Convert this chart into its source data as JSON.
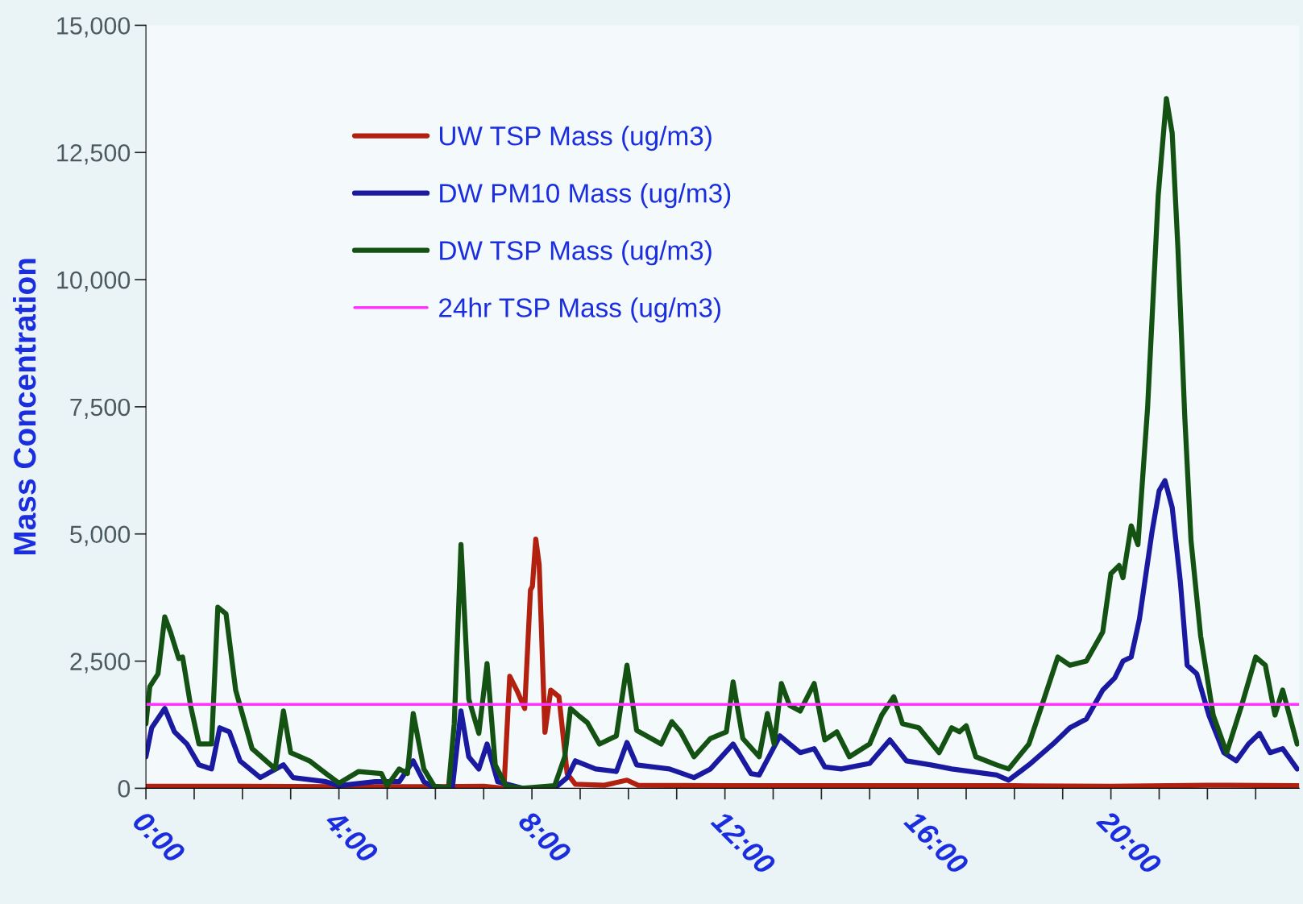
{
  "chart_data": {
    "type": "line",
    "ylabel": "Mass Concentration",
    "xlim": [
      0,
      23.9
    ],
    "ylim": [
      0,
      15000
    ],
    "xticks": [
      {
        "value": 0,
        "label": "0:00"
      },
      {
        "value": 1,
        "label": null
      },
      {
        "value": 2,
        "label": null
      },
      {
        "value": 3,
        "label": null
      },
      {
        "value": 4,
        "label": "4:00"
      },
      {
        "value": 5,
        "label": null
      },
      {
        "value": 6,
        "label": null
      },
      {
        "value": 7,
        "label": null
      },
      {
        "value": 8,
        "label": "8:00"
      },
      {
        "value": 9,
        "label": null
      },
      {
        "value": 10,
        "label": null
      },
      {
        "value": 11,
        "label": null
      },
      {
        "value": 12,
        "label": "12:00"
      },
      {
        "value": 13,
        "label": null
      },
      {
        "value": 14,
        "label": null
      },
      {
        "value": 15,
        "label": null
      },
      {
        "value": 16,
        "label": "16:00"
      },
      {
        "value": 17,
        "label": null
      },
      {
        "value": 18,
        "label": null
      },
      {
        "value": 19,
        "label": null
      },
      {
        "value": 20,
        "label": "20:00"
      },
      {
        "value": 21,
        "label": null
      },
      {
        "value": 22,
        "label": null
      },
      {
        "value": 23,
        "label": null
      }
    ],
    "yticks": [
      0,
      {
        "value": 2500,
        "label": "2,500"
      },
      {
        "value": 5000,
        "label": "5,000"
      },
      {
        "value": 7500,
        "label": "7,500"
      },
      {
        "value": 10000,
        "label": "10,000"
      },
      {
        "value": 12500,
        "label": "12,500"
      },
      {
        "value": 15000,
        "label": "15,000"
      }
    ],
    "grid": false,
    "legend": "top left",
    "marker": "none",
    "line_style": "solid",
    "series": [
      {
        "name": "UW TSP Mass (ug/m3)",
        "color": "#b22010",
        "x": [
          0,
          2,
          4,
          6,
          7,
          7.42,
          7.54,
          7.7,
          7.85,
          7.97,
          8.01,
          8.08,
          8.15,
          8.27,
          8.39,
          8.56,
          8.73,
          8.9,
          9.5,
          9.97,
          10.2,
          12,
          14,
          16,
          18,
          20,
          22,
          23.9
        ],
        "values": [
          40,
          40,
          30,
          30,
          40,
          0,
          2200,
          1900,
          1570,
          3900,
          3970,
          4900,
          4400,
          1100,
          1930,
          1800,
          290,
          80,
          60,
          160,
          60,
          50,
          50,
          50,
          50,
          40,
          60,
          50
        ]
      },
      {
        "name": "DW PM10 Mass (ug/m3)",
        "color": "#1a1aa0",
        "x": [
          0,
          0.12,
          0.39,
          0.59,
          0.85,
          1.1,
          1.36,
          1.53,
          1.73,
          1.95,
          2.37,
          2.85,
          3.05,
          3.73,
          4.0,
          4.75,
          5.25,
          5.54,
          5.76,
          6.0,
          6.35,
          6.53,
          6.69,
          6.9,
          7.07,
          7.29,
          7.8,
          8.47,
          8.73,
          8.9,
          9.32,
          9.75,
          9.97,
          10.17,
          10.85,
          11.36,
          11.7,
          12.17,
          12.54,
          12.71,
          13.14,
          13.56,
          13.85,
          14.07,
          14.41,
          15.0,
          15.42,
          15.76,
          16.27,
          16.7,
          17.63,
          17.88,
          18.3,
          18.8,
          19.15,
          19.49,
          19.83,
          20.08,
          20.25,
          20.42,
          20.59,
          20.85,
          21.0,
          21.12,
          21.27,
          21.44,
          21.58,
          21.78,
          22.03,
          22.34,
          22.6,
          22.85,
          23.08,
          23.3,
          23.56,
          23.86
        ],
        "values": [
          620,
          1190,
          1570,
          1110,
          870,
          460,
          380,
          1190,
          1110,
          540,
          210,
          460,
          210,
          130,
          50,
          130,
          130,
          540,
          130,
          0,
          0,
          1520,
          620,
          380,
          870,
          130,
          0,
          0,
          210,
          540,
          380,
          330,
          900,
          460,
          380,
          210,
          380,
          870,
          290,
          260,
          1030,
          700,
          780,
          420,
          380,
          490,
          950,
          540,
          460,
          380,
          260,
          160,
          460,
          870,
          1190,
          1360,
          1930,
          2170,
          2500,
          2580,
          3320,
          5030,
          5850,
          6050,
          5520,
          4050,
          2420,
          2250,
          1440,
          700,
          540,
          870,
          1080,
          700,
          780,
          380
        ]
      },
      {
        "name": "DW TSP Mass (ug/m3)",
        "color": "#145214",
        "x": [
          0,
          0.08,
          0.25,
          0.39,
          0.51,
          0.68,
          0.76,
          0.93,
          1.1,
          1.36,
          1.49,
          1.66,
          1.86,
          2.2,
          2.68,
          2.85,
          3.0,
          3.39,
          3.73,
          4.0,
          4.41,
          4.88,
          5.0,
          5.25,
          5.42,
          5.54,
          5.76,
          5.97,
          6.27,
          6.39,
          6.53,
          6.69,
          6.9,
          7.07,
          7.24,
          7.46,
          7.8,
          8.47,
          8.68,
          8.8,
          8.98,
          9.15,
          9.4,
          9.75,
          9.97,
          10.17,
          10.68,
          10.9,
          11.08,
          11.36,
          11.7,
          12.03,
          12.17,
          12.37,
          12.71,
          12.88,
          13.02,
          13.17,
          13.34,
          13.56,
          13.85,
          14.07,
          14.32,
          14.58,
          15.0,
          15.25,
          15.5,
          15.68,
          16.02,
          16.44,
          16.7,
          16.86,
          17.0,
          17.2,
          17.63,
          17.88,
          18.3,
          18.56,
          18.9,
          19.15,
          19.49,
          19.83,
          20.0,
          20.17,
          20.25,
          20.42,
          20.56,
          20.76,
          20.98,
          21.15,
          21.27,
          21.39,
          21.53,
          21.66,
          21.86,
          22.12,
          22.4,
          22.7,
          23.0,
          23.2,
          23.4,
          23.56,
          23.86
        ],
        "values": [
          1270,
          2000,
          2250,
          3370,
          3070,
          2550,
          2580,
          1600,
          870,
          870,
          3560,
          3430,
          1930,
          780,
          380,
          1520,
          700,
          540,
          290,
          100,
          330,
          290,
          50,
          380,
          290,
          1470,
          380,
          50,
          0,
          1270,
          4790,
          1760,
          1080,
          2450,
          460,
          50,
          0,
          50,
          620,
          1570,
          1420,
          1290,
          870,
          1030,
          2420,
          1140,
          870,
          1310,
          1110,
          620,
          980,
          1110,
          2090,
          980,
          620,
          1470,
          870,
          2060,
          1630,
          1520,
          2060,
          950,
          1110,
          620,
          870,
          1440,
          1800,
          1270,
          1190,
          700,
          1190,
          1110,
          1230,
          620,
          460,
          380,
          870,
          1600,
          2580,
          2420,
          2500,
          3070,
          4220,
          4380,
          4140,
          5160,
          4790,
          7480,
          11650,
          13560,
          12880,
          10590,
          7320,
          4870,
          2990,
          1440,
          700,
          1600,
          2580,
          2420,
          1440,
          1930,
          870
        ]
      },
      {
        "name": "24hr TSP Mass (ug/m3)",
        "color": "#ff33ff",
        "x": [
          0,
          23.9
        ],
        "values": [
          1650,
          1650
        ]
      }
    ]
  }
}
